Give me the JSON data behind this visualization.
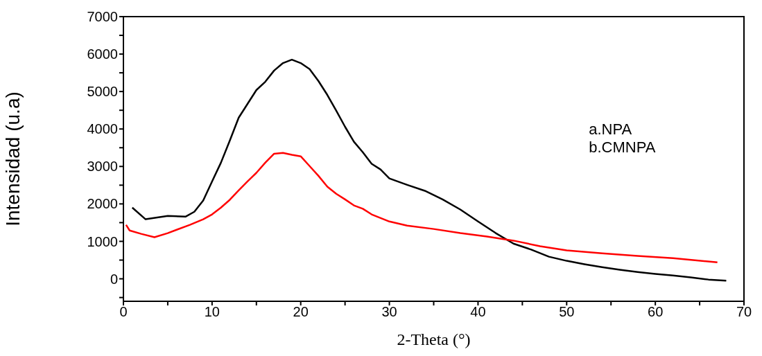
{
  "chart_data": {
    "type": "line",
    "xlabel": "2-Theta (°)",
    "ylabel": "Intensidad (u.a)",
    "annotations": [
      "a.NPA",
      "b.CMNPA"
    ],
    "xlim": [
      0,
      70
    ],
    "xticks": [
      0,
      {
        "value": 5,
        "label": null
      },
      10,
      {
        "value": 15,
        "label": null
      },
      20,
      {
        "value": 25,
        "label": null
      },
      30,
      {
        "value": 35,
        "label": null
      },
      40,
      {
        "value": 45,
        "label": null
      },
      50,
      {
        "value": 55,
        "label": null
      },
      60,
      {
        "value": 65,
        "label": null
      },
      70
    ],
    "ylim": [
      -600,
      7000
    ],
    "yticks": [
      {
        "value": -500,
        "label": null
      },
      0,
      {
        "value": 500,
        "label": null
      },
      1000,
      {
        "value": 1500,
        "label": null
      },
      2000,
      {
        "value": 2500,
        "label": null
      },
      3000,
      {
        "value": 3500,
        "label": null
      },
      4000,
      {
        "value": 4500,
        "label": null
      },
      5000,
      {
        "value": 5500,
        "label": null
      },
      6000,
      {
        "value": 6500,
        "label": null
      },
      7000
    ],
    "grid": false,
    "legend": false,
    "marker": "none",
    "line_style": "solid",
    "series": [
      {
        "color": "#000000",
        "x": [
          1,
          2.5,
          5,
          7,
          8,
          9,
          10,
          11,
          12,
          13,
          14,
          15,
          16,
          17,
          18,
          19,
          20,
          21,
          22,
          23,
          24,
          25,
          26,
          27,
          28,
          29,
          30,
          32,
          34,
          36,
          38,
          40,
          42,
          44,
          46,
          48,
          50,
          52,
          54,
          56,
          58,
          60,
          62,
          64,
          66,
          68
        ],
        "values": [
          1900,
          1590,
          1680,
          1660,
          1790,
          2090,
          2600,
          3100,
          3690,
          4300,
          4670,
          5040,
          5260,
          5560,
          5760,
          5850,
          5760,
          5600,
          5280,
          4910,
          4490,
          4060,
          3660,
          3380,
          3070,
          2920,
          2680,
          2510,
          2350,
          2120,
          1850,
          1530,
          1220,
          940,
          780,
          590,
          480,
          390,
          310,
          240,
          180,
          130,
          90,
          40,
          -20,
          -50
        ]
      },
      {
        "color": "#ff0000",
        "x": [
          0.3,
          0.7,
          2,
          3.5,
          5,
          6,
          7.5,
          9,
          10,
          11,
          12,
          13,
          14,
          15,
          16,
          17,
          18,
          19,
          20,
          21,
          22,
          23,
          24,
          25,
          26,
          27,
          28,
          30,
          32,
          35,
          38,
          41,
          44,
          47,
          50,
          54,
          58,
          62,
          67
        ],
        "values": [
          1440,
          1290,
          1200,
          1110,
          1220,
          1310,
          1440,
          1590,
          1720,
          1900,
          2110,
          2360,
          2600,
          2830,
          3100,
          3340,
          3360,
          3310,
          3270,
          3010,
          2750,
          2460,
          2270,
          2120,
          1960,
          1870,
          1720,
          1530,
          1420,
          1330,
          1220,
          1130,
          1020,
          870,
          760,
          680,
          610,
          550,
          440
        ]
      }
    ]
  }
}
